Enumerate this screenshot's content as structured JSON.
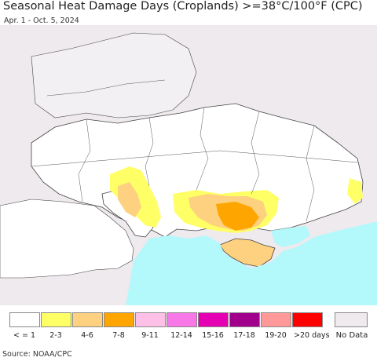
{
  "title": "Seasonal Heat Damage Days (Croplands) >=38°C/100°F (CPC)",
  "subtitle": "Apr. 1 - Oct. 5, 2024",
  "source": "Source: NOAA/CPC",
  "legend": {
    "items": [
      {
        "label": "< = 1",
        "color": "#ffffff"
      },
      {
        "label": "2-3",
        "color": "#ffff66"
      },
      {
        "label": "4-6",
        "color": "#fdd17f"
      },
      {
        "label": "7-8",
        "color": "#ffa500"
      },
      {
        "label": "9-11",
        "color": "#ffc0e8"
      },
      {
        "label": "12-14",
        "color": "#f778e6"
      },
      {
        "label": "15-16",
        "color": "#e600b4"
      },
      {
        "label": "17-18",
        "color": "#a0008c"
      },
      {
        "label": "19-20",
        "color": "#ff9999"
      },
      {
        "label": ">20 days",
        "color": "#ff0000"
      }
    ],
    "no_data": {
      "label": "No Data",
      "color": "#eeeaee"
    }
  },
  "colors": {
    "sea": "#b3f8fb",
    "land_no_data": "#eeeaee",
    "cropland": "#ffffff",
    "border": "#333333"
  }
}
